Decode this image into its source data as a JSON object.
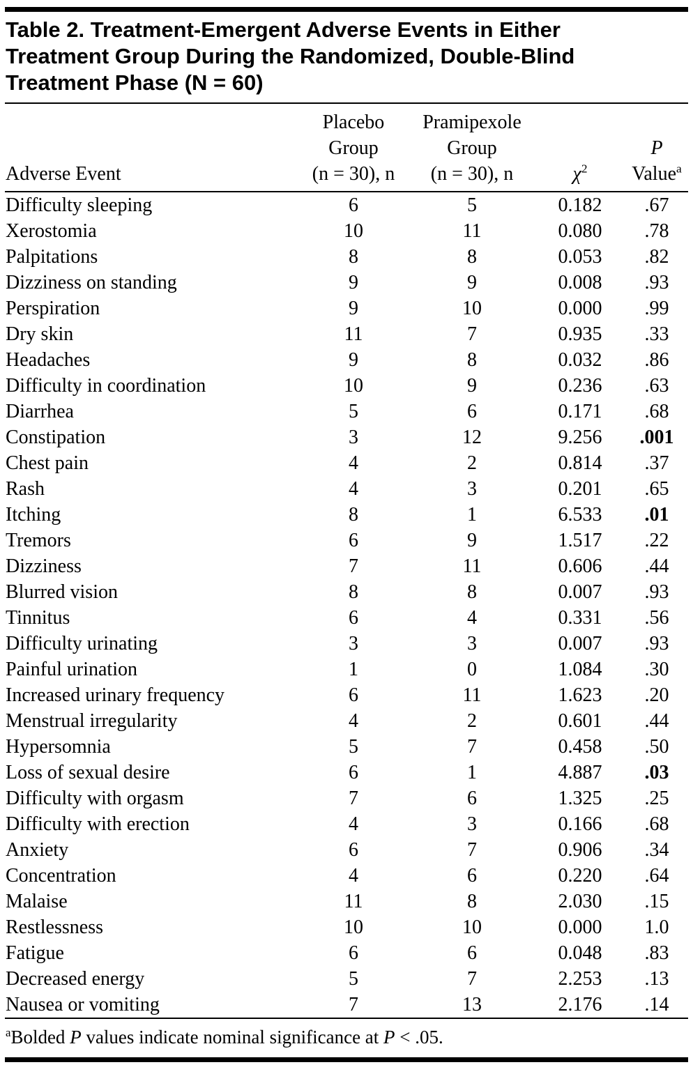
{
  "title": {
    "lines": [
      "Table 2. Treatment-Emergent Adverse Events in Either",
      "Treatment Group During the Randomized, Double-Blind",
      "Treatment Phase (N = 60)"
    ]
  },
  "header": {
    "adverse_event": "Adverse Event",
    "placebo_lines": [
      "Placebo",
      "Group",
      "(n = 30), n"
    ],
    "pramipexole_lines": [
      "Pramipexole",
      "Group",
      "(n = 30), n"
    ],
    "chi_base": "χ",
    "chi_sup": "2",
    "p_line1": "P",
    "p_line2": "Value",
    "p_sup": "a"
  },
  "table": {
    "rows": [
      {
        "event": "Difficulty sleeping",
        "placebo": "6",
        "pramipexole": "5",
        "chi2": "0.182",
        "p": ".67",
        "p_bold": false
      },
      {
        "event": "Xerostomia",
        "placebo": "10",
        "pramipexole": "11",
        "chi2": "0.080",
        "p": ".78",
        "p_bold": false
      },
      {
        "event": "Palpitations",
        "placebo": "8",
        "pramipexole": "8",
        "chi2": "0.053",
        "p": ".82",
        "p_bold": false
      },
      {
        "event": "Dizziness on standing",
        "placebo": "9",
        "pramipexole": "9",
        "chi2": "0.008",
        "p": ".93",
        "p_bold": false
      },
      {
        "event": "Perspiration",
        "placebo": "9",
        "pramipexole": "10",
        "chi2": "0.000",
        "p": ".99",
        "p_bold": false
      },
      {
        "event": "Dry skin",
        "placebo": "11",
        "pramipexole": "7",
        "chi2": "0.935",
        "p": ".33",
        "p_bold": false
      },
      {
        "event": "Headaches",
        "placebo": "9",
        "pramipexole": "8",
        "chi2": "0.032",
        "p": ".86",
        "p_bold": false
      },
      {
        "event": "Difficulty in coordination",
        "placebo": "10",
        "pramipexole": "9",
        "chi2": "0.236",
        "p": ".63",
        "p_bold": false
      },
      {
        "event": "Diarrhea",
        "placebo": "5",
        "pramipexole": "6",
        "chi2": "0.171",
        "p": ".68",
        "p_bold": false
      },
      {
        "event": "Constipation",
        "placebo": "3",
        "pramipexole": "12",
        "chi2": "9.256",
        "p": ".001",
        "p_bold": true
      },
      {
        "event": "Chest pain",
        "placebo": "4",
        "pramipexole": "2",
        "chi2": "0.814",
        "p": ".37",
        "p_bold": false
      },
      {
        "event": "Rash",
        "placebo": "4",
        "pramipexole": "3",
        "chi2": "0.201",
        "p": ".65",
        "p_bold": false
      },
      {
        "event": "Itching",
        "placebo": "8",
        "pramipexole": "1",
        "chi2": "6.533",
        "p": ".01",
        "p_bold": true
      },
      {
        "event": "Tremors",
        "placebo": "6",
        "pramipexole": "9",
        "chi2": "1.517",
        "p": ".22",
        "p_bold": false
      },
      {
        "event": "Dizziness",
        "placebo": "7",
        "pramipexole": "11",
        "chi2": "0.606",
        "p": ".44",
        "p_bold": false
      },
      {
        "event": "Blurred vision",
        "placebo": "8",
        "pramipexole": "8",
        "chi2": "0.007",
        "p": ".93",
        "p_bold": false
      },
      {
        "event": "Tinnitus",
        "placebo": "6",
        "pramipexole": "4",
        "chi2": "0.331",
        "p": ".56",
        "p_bold": false
      },
      {
        "event": "Difficulty urinating",
        "placebo": "3",
        "pramipexole": "3",
        "chi2": "0.007",
        "p": ".93",
        "p_bold": false
      },
      {
        "event": "Painful urination",
        "placebo": "1",
        "pramipexole": "0",
        "chi2": "1.084",
        "p": ".30",
        "p_bold": false
      },
      {
        "event": "Increased urinary frequency",
        "placebo": "6",
        "pramipexole": "11",
        "chi2": "1.623",
        "p": ".20",
        "p_bold": false
      },
      {
        "event": "Menstrual irregularity",
        "placebo": "4",
        "pramipexole": "2",
        "chi2": "0.601",
        "p": ".44",
        "p_bold": false
      },
      {
        "event": "Hypersomnia",
        "placebo": "5",
        "pramipexole": "7",
        "chi2": "0.458",
        "p": ".50",
        "p_bold": false
      },
      {
        "event": "Loss of sexual desire",
        "placebo": "6",
        "pramipexole": "1",
        "chi2": "4.887",
        "p": ".03",
        "p_bold": true
      },
      {
        "event": "Difficulty with orgasm",
        "placebo": "7",
        "pramipexole": "6",
        "chi2": "1.325",
        "p": ".25",
        "p_bold": false
      },
      {
        "event": "Difficulty with erection",
        "placebo": "4",
        "pramipexole": "3",
        "chi2": "0.166",
        "p": ".68",
        "p_bold": false
      },
      {
        "event": "Anxiety",
        "placebo": "6",
        "pramipexole": "7",
        "chi2": "0.906",
        "p": ".34",
        "p_bold": false
      },
      {
        "event": "Concentration",
        "placebo": "4",
        "pramipexole": "6",
        "chi2": "0.220",
        "p": ".64",
        "p_bold": false
      },
      {
        "event": "Malaise",
        "placebo": "11",
        "pramipexole": "8",
        "chi2": "2.030",
        "p": ".15",
        "p_bold": false
      },
      {
        "event": "Restlessness",
        "placebo": "10",
        "pramipexole": "10",
        "chi2": "0.000",
        "p": "1.0",
        "p_bold": false
      },
      {
        "event": "Fatigue",
        "placebo": "6",
        "pramipexole": "6",
        "chi2": "0.048",
        "p": ".83",
        "p_bold": false
      },
      {
        "event": "Decreased energy",
        "placebo": "5",
        "pramipexole": "7",
        "chi2": "2.253",
        "p": ".13",
        "p_bold": false
      },
      {
        "event": "Nausea or vomiting",
        "placebo": "7",
        "pramipexole": "13",
        "chi2": "2.176",
        "p": ".14",
        "p_bold": false
      }
    ]
  },
  "footnote": {
    "sup": "a",
    "part1": "Bolded ",
    "p1": "P",
    "part2": " values indicate nominal significance at ",
    "p2": "P",
    "part3": " < .05."
  }
}
